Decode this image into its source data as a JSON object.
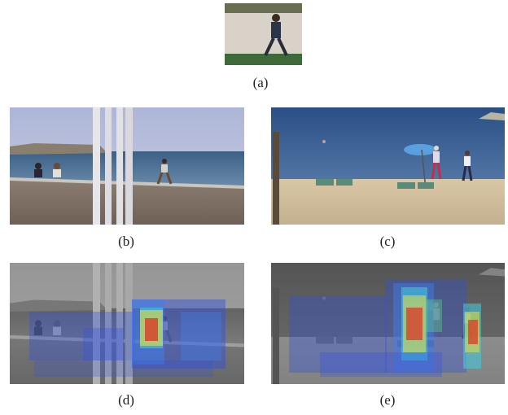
{
  "captions": [
    "(a)",
    "(b)",
    "(c)",
    "(d)",
    "(e)"
  ]
}
